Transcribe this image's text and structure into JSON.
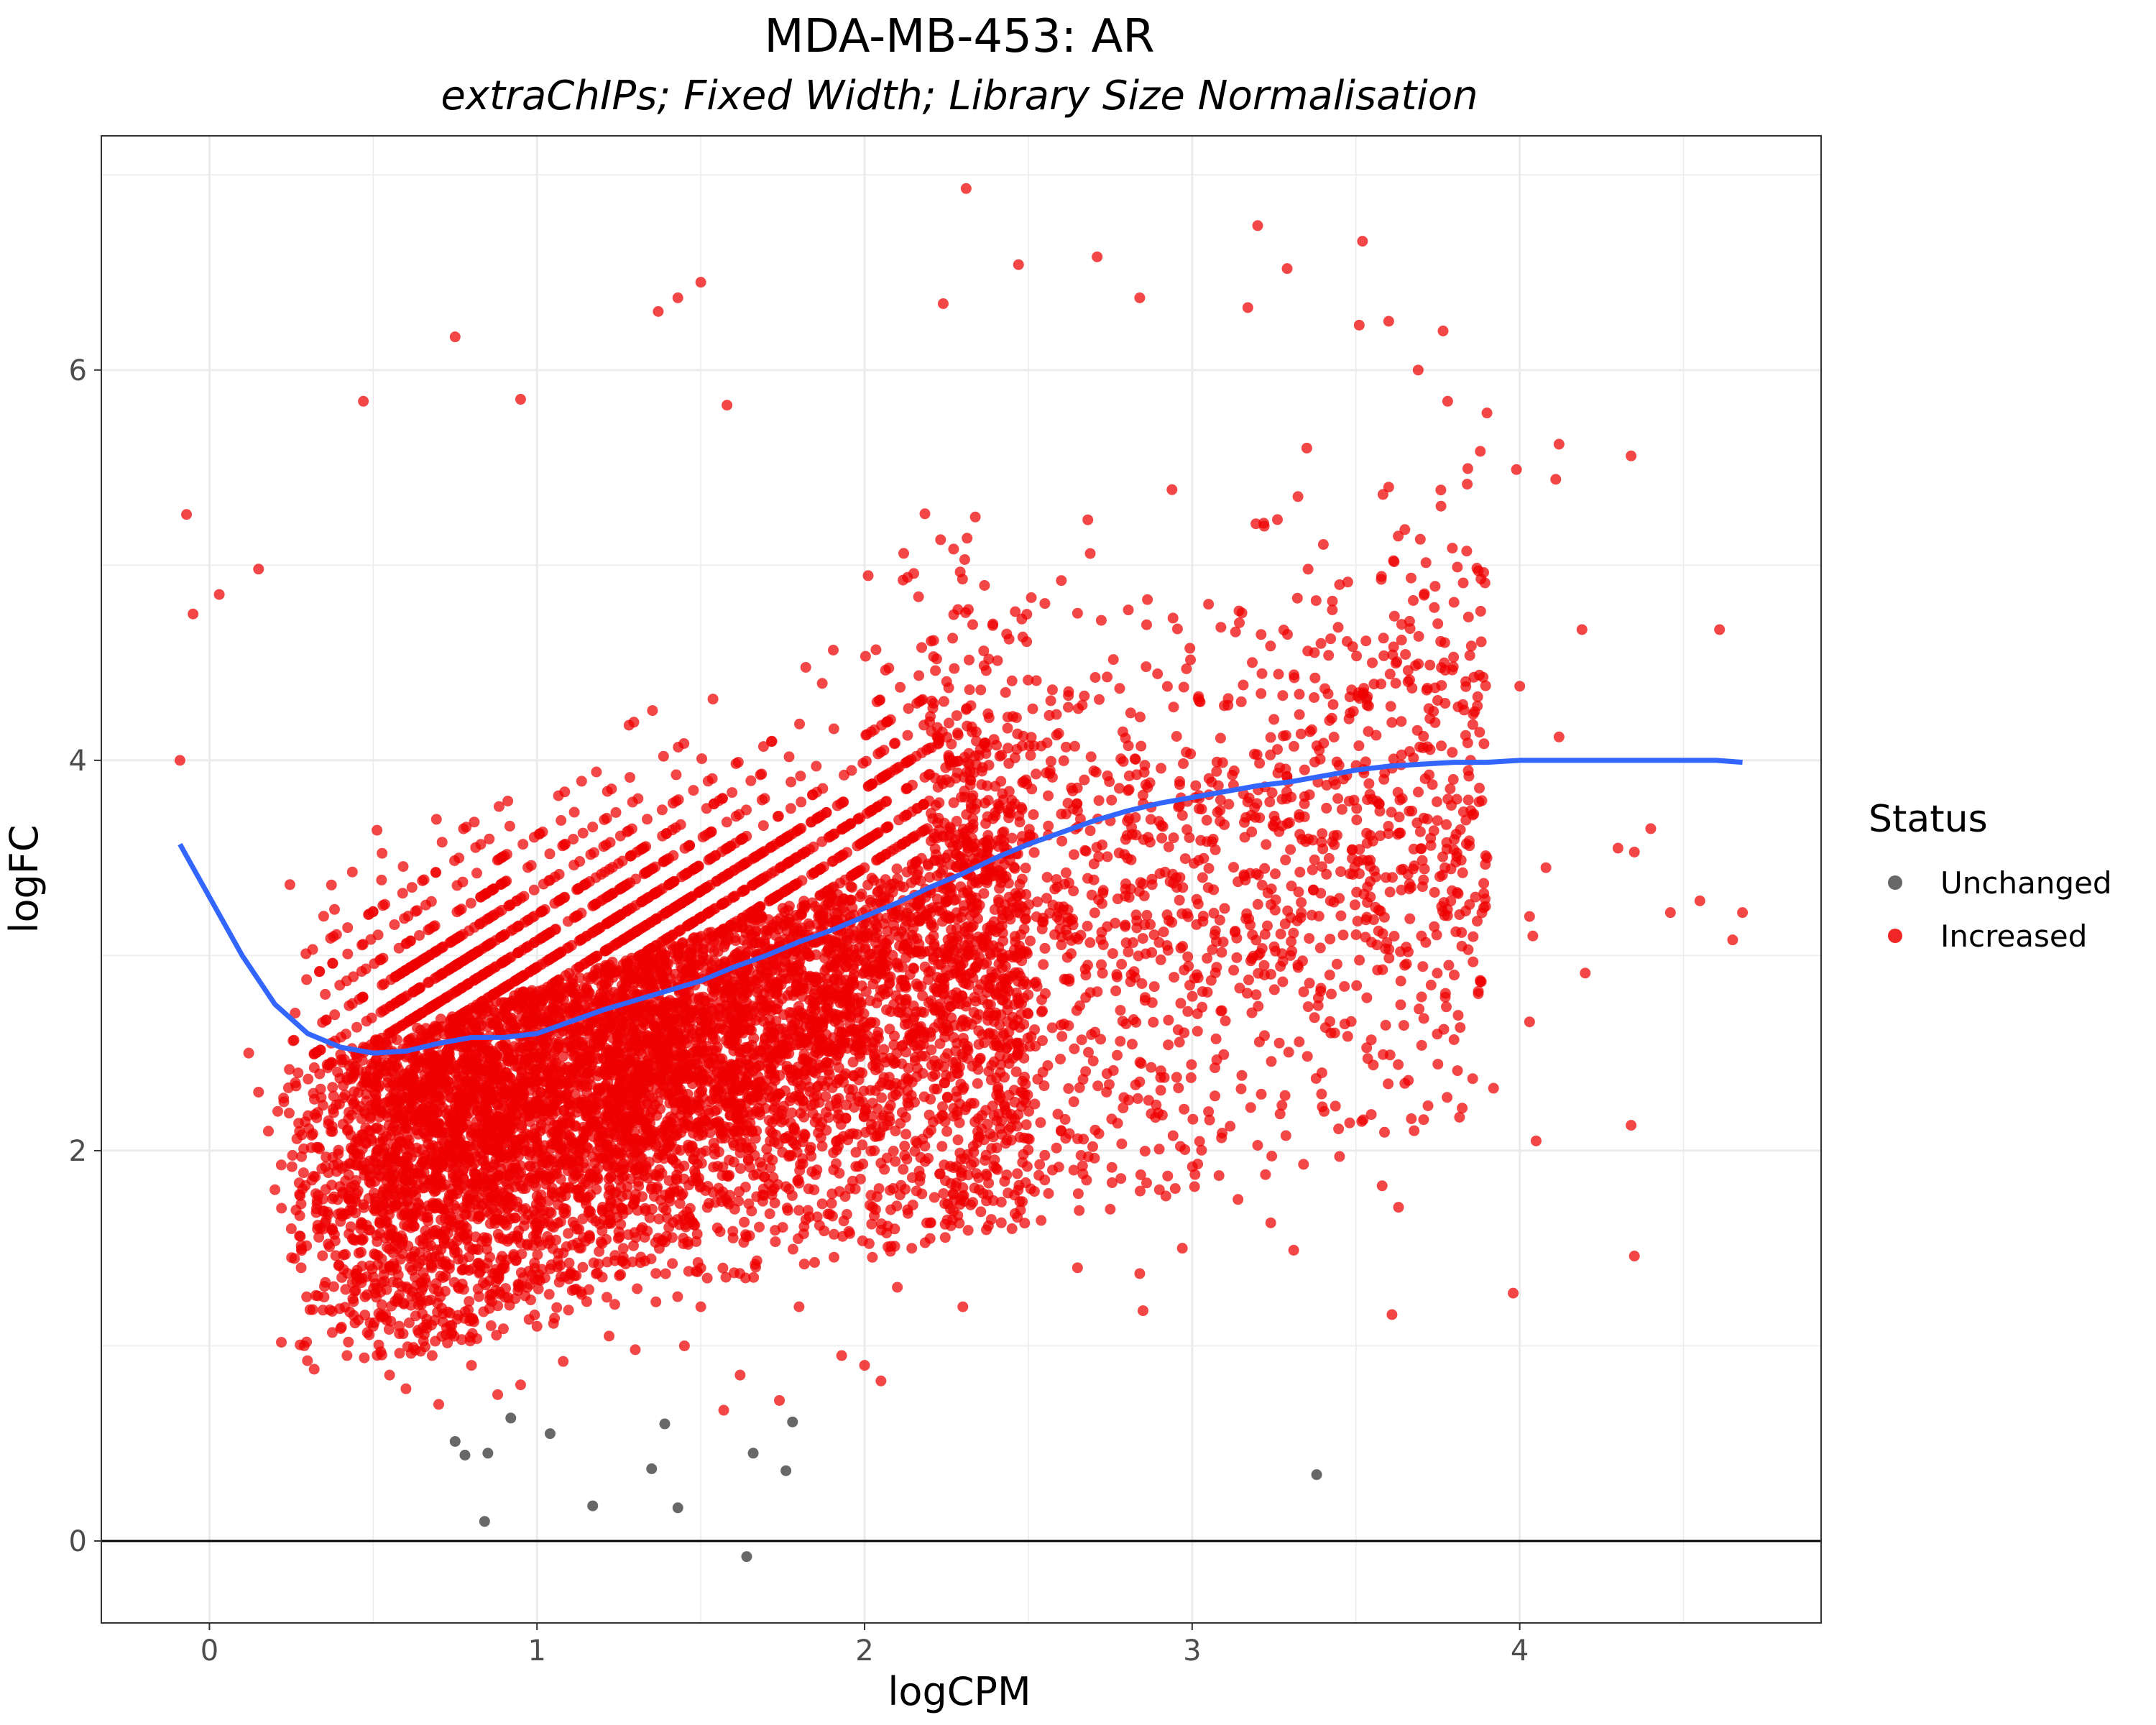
{
  "chart_data": {
    "type": "scatter",
    "title": "MDA-MB-453: AR",
    "subtitle": "extraChIPs; Fixed Width; Library Size Normalisation",
    "xlabel": "logCPM",
    "ylabel": "logFC",
    "xlim": [
      -0.33,
      4.92
    ],
    "ylim": [
      -0.42,
      7.2
    ],
    "x_ticks": [
      0,
      1,
      2,
      3,
      4
    ],
    "y_ticks": [
      0,
      2,
      4,
      6
    ],
    "x_tick_labels": [
      "0",
      "1",
      "2",
      "3",
      "4"
    ],
    "y_tick_labels": [
      "0",
      "2",
      "4",
      "6"
    ],
    "grid": true,
    "hline": 0,
    "legend": {
      "title": "Status",
      "position": "right",
      "entries": [
        {
          "label": "Unchanged",
          "color": "#4d4d4d"
        },
        {
          "label": "Increased",
          "color": "#ee0000"
        }
      ]
    },
    "series": [
      {
        "name": "Unchanged",
        "color": "#4d4d4d",
        "points": [
          [
            0.75,
            0.51
          ],
          [
            0.78,
            0.44
          ],
          [
            0.85,
            0.45
          ],
          [
            0.92,
            0.63
          ],
          [
            1.04,
            0.55
          ],
          [
            0.84,
            0.1
          ],
          [
            1.17,
            0.18
          ],
          [
            1.35,
            0.37
          ],
          [
            1.39,
            0.6
          ],
          [
            1.43,
            0.17
          ],
          [
            1.66,
            0.45
          ],
          [
            1.76,
            0.36
          ],
          [
            1.78,
            0.61
          ],
          [
            1.64,
            -0.08
          ],
          [
            3.38,
            0.34
          ]
        ]
      },
      {
        "name": "Increased",
        "color": "#ee0000",
        "points": [
          [
            -0.09,
            4.0
          ],
          [
            -0.07,
            5.26
          ],
          [
            -0.05,
            4.75
          ],
          [
            0.03,
            4.85
          ],
          [
            0.15,
            4.98
          ],
          [
            0.47,
            5.84
          ],
          [
            0.75,
            6.17
          ],
          [
            0.95,
            5.85
          ],
          [
            1.37,
            6.3
          ],
          [
            1.43,
            6.37
          ],
          [
            1.5,
            6.45
          ],
          [
            1.58,
            5.82
          ],
          [
            2.31,
            6.93
          ],
          [
            2.24,
            6.34
          ],
          [
            2.47,
            6.54
          ],
          [
            2.71,
            6.58
          ],
          [
            2.84,
            6.37
          ],
          [
            3.2,
            6.74
          ],
          [
            3.52,
            6.66
          ],
          [
            3.17,
            6.32
          ],
          [
            3.29,
            6.52
          ],
          [
            3.51,
            6.23
          ],
          [
            3.6,
            6.25
          ],
          [
            3.78,
            5.84
          ],
          [
            3.69,
            6.0
          ],
          [
            3.9,
            5.78
          ],
          [
            4.12,
            5.62
          ],
          [
            4.34,
            5.56
          ],
          [
            3.99,
            5.49
          ],
          [
            4.11,
            5.44
          ],
          [
            4.61,
            4.67
          ],
          [
            4.19,
            4.67
          ],
          [
            4.0,
            4.38
          ],
          [
            4.12,
            4.12
          ],
          [
            4.4,
            3.65
          ],
          [
            4.3,
            3.55
          ],
          [
            4.35,
            3.53
          ],
          [
            4.46,
            3.22
          ],
          [
            4.55,
            3.28
          ],
          [
            4.68,
            3.22
          ],
          [
            4.65,
            3.08
          ],
          [
            4.03,
            3.2
          ],
          [
            4.04,
            3.1
          ],
          [
            4.08,
            3.45
          ],
          [
            4.2,
            2.91
          ],
          [
            4.03,
            2.66
          ],
          [
            4.05,
            2.05
          ],
          [
            4.34,
            2.13
          ],
          [
            4.35,
            1.46
          ],
          [
            3.98,
            1.27
          ],
          [
            3.61,
            1.16
          ],
          [
            3.58,
            1.82
          ],
          [
            3.63,
            1.71
          ],
          [
            3.34,
            1.93
          ],
          [
            3.45,
            1.97
          ],
          [
            3.66,
            2.36
          ],
          [
            3.72,
            2.23
          ],
          [
            3.81,
            2.41
          ],
          [
            3.92,
            2.32
          ],
          [
            2.85,
            1.18
          ],
          [
            2.84,
            1.37
          ],
          [
            2.97,
            1.5
          ],
          [
            3.14,
            1.75
          ],
          [
            3.24,
            1.63
          ],
          [
            3.31,
            1.49
          ],
          [
            3.55,
            3.8
          ],
          [
            3.7,
            3.1
          ],
          [
            3.42,
            2.9
          ],
          [
            3.8,
            2.9
          ],
          [
            3.3,
            3.0
          ],
          [
            3.9,
            3.5
          ],
          [
            3.55,
            4.5
          ],
          [
            3.45,
            4.9
          ],
          [
            3.6,
            5.4
          ],
          [
            3.75,
            4.7
          ],
          [
            3.85,
            4.0
          ],
          [
            3.22,
            5.2
          ],
          [
            3.35,
            5.6
          ],
          [
            3.05,
            4.8
          ],
          [
            3.15,
            4.3
          ],
          [
            2.55,
            1.85
          ],
          [
            2.6,
            2.1
          ],
          [
            2.45,
            1.6
          ],
          [
            2.35,
            1.8
          ],
          [
            2.1,
            1.3
          ],
          [
            2.2,
            1.55
          ],
          [
            2.0,
            0.9
          ],
          [
            2.05,
            0.82
          ],
          [
            1.93,
            0.95
          ],
          [
            1.8,
            1.2
          ],
          [
            1.74,
            0.72
          ],
          [
            1.57,
            0.67
          ],
          [
            1.62,
            0.85
          ],
          [
            1.45,
            1.0
          ],
          [
            1.3,
            0.98
          ],
          [
            1.22,
            1.05
          ],
          [
            1.08,
            0.92
          ],
          [
            0.95,
            0.8
          ],
          [
            0.88,
            0.75
          ],
          [
            0.8,
            0.9
          ],
          [
            0.68,
            0.95
          ],
          [
            0.6,
            0.78
          ],
          [
            0.5,
            1.1
          ],
          [
            0.42,
            0.95
          ],
          [
            0.35,
            1.25
          ],
          [
            0.28,
            1.4
          ],
          [
            0.25,
            1.6
          ],
          [
            0.2,
            1.8
          ],
          [
            0.18,
            2.1
          ],
          [
            0.15,
            2.3
          ],
          [
            0.12,
            2.5
          ],
          [
            0.7,
            0.7
          ],
          [
            0.55,
            0.85
          ],
          [
            1.0,
            1.1
          ],
          [
            1.5,
            1.2
          ],
          [
            2.3,
            1.2
          ],
          [
            2.65,
            1.4
          ],
          [
            2.75,
            1.7
          ],
          [
            2.9,
            1.8
          ],
          [
            3.05,
            2.2
          ]
        ]
      }
    ],
    "trend": {
      "color": "#3366ff",
      "points": [
        [
          -0.09,
          3.57
        ],
        [
          0.0,
          3.3
        ],
        [
          0.1,
          3.0
        ],
        [
          0.2,
          2.75
        ],
        [
          0.3,
          2.6
        ],
        [
          0.4,
          2.53
        ],
        [
          0.5,
          2.5
        ],
        [
          0.6,
          2.51
        ],
        [
          0.7,
          2.55
        ],
        [
          0.8,
          2.58
        ],
        [
          0.9,
          2.58
        ],
        [
          1.0,
          2.6
        ],
        [
          1.1,
          2.66
        ],
        [
          1.2,
          2.72
        ],
        [
          1.3,
          2.77
        ],
        [
          1.4,
          2.82
        ],
        [
          1.5,
          2.87
        ],
        [
          1.6,
          2.94
        ],
        [
          1.7,
          3.0
        ],
        [
          1.8,
          3.07
        ],
        [
          1.9,
          3.13
        ],
        [
          2.0,
          3.2
        ],
        [
          2.1,
          3.27
        ],
        [
          2.2,
          3.35
        ],
        [
          2.3,
          3.42
        ],
        [
          2.4,
          3.5
        ],
        [
          2.5,
          3.57
        ],
        [
          2.6,
          3.63
        ],
        [
          2.7,
          3.69
        ],
        [
          2.8,
          3.74
        ],
        [
          2.9,
          3.78
        ],
        [
          3.0,
          3.81
        ],
        [
          3.1,
          3.84
        ],
        [
          3.2,
          3.87
        ],
        [
          3.3,
          3.89
        ],
        [
          3.4,
          3.92
        ],
        [
          3.5,
          3.95
        ],
        [
          3.6,
          3.97
        ],
        [
          3.7,
          3.98
        ],
        [
          3.8,
          3.99
        ],
        [
          3.9,
          3.99
        ],
        [
          4.0,
          4.0
        ],
        [
          4.1,
          4.0
        ],
        [
          4.2,
          4.0
        ],
        [
          4.3,
          4.0
        ],
        [
          4.4,
          4.0
        ],
        [
          4.5,
          4.0
        ],
        [
          4.6,
          4.0
        ],
        [
          4.68,
          3.99
        ]
      ]
    },
    "density_model": {
      "count": 9000,
      "description_hidden": false,
      "seed": 20240511
    }
  }
}
